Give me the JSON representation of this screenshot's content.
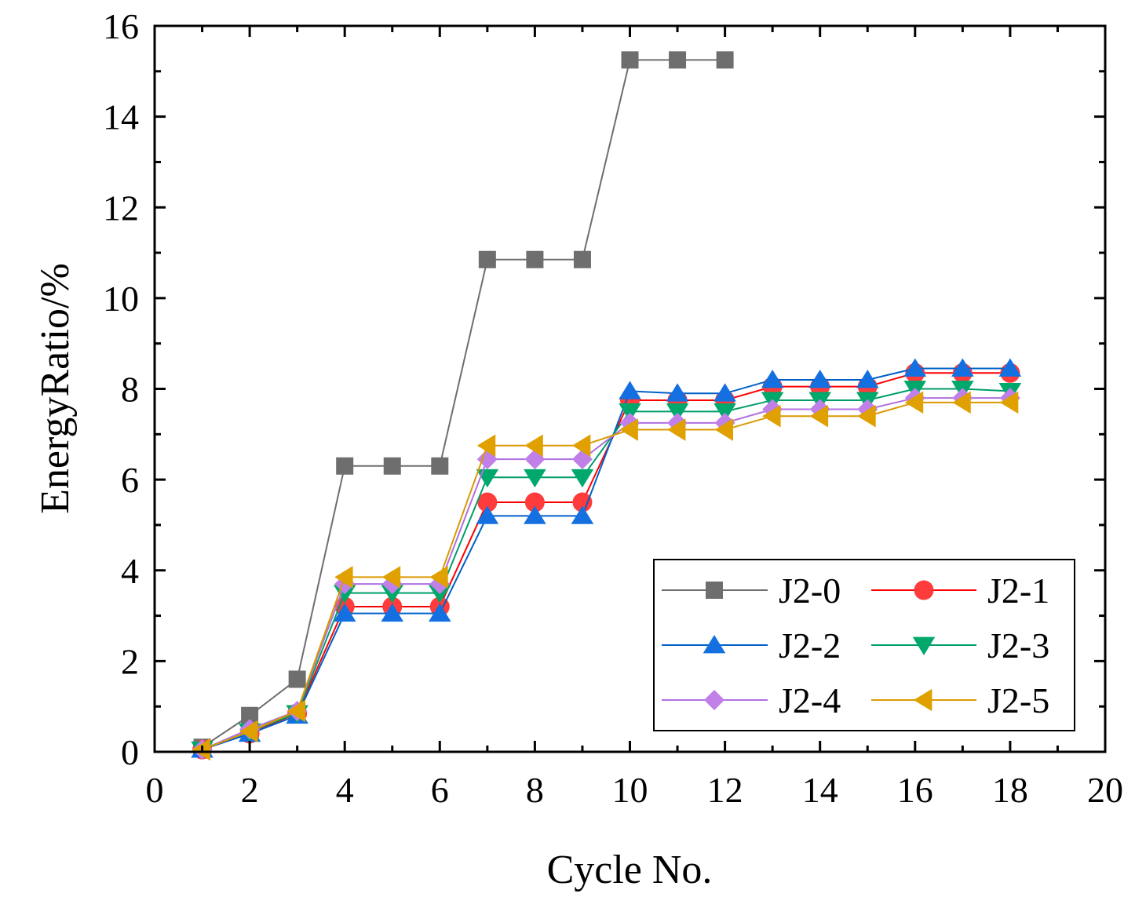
{
  "chart_data": {
    "type": "line",
    "title": "",
    "xlabel": "Cycle No.",
    "ylabel": "EnergyRatio/%",
    "xlim": [
      0,
      20
    ],
    "ylim": [
      0,
      16
    ],
    "x_ticks": [
      "0",
      "2",
      "4",
      "6",
      "8",
      "10",
      "12",
      "14",
      "16",
      "18",
      "20"
    ],
    "y_ticks": [
      "0",
      "2",
      "4",
      "6",
      "8",
      "10",
      "12",
      "14",
      "16"
    ],
    "grid": false,
    "legend_position": "bottom-right",
    "series": [
      {
        "name": "J2-0",
        "color": "#6e6e6e",
        "marker": "square",
        "x": [
          1,
          2,
          3,
          4,
          5,
          6,
          7,
          8,
          9,
          10,
          11,
          12
        ],
        "y": [
          0.1,
          0.8,
          1.6,
          6.3,
          6.3,
          6.3,
          10.85,
          10.85,
          10.85,
          15.25,
          15.25,
          15.25
        ]
      },
      {
        "name": "J2-1",
        "color": "#ff0000",
        "fill": "#ff3b3b",
        "marker": "circle",
        "x": [
          1,
          2,
          3,
          4,
          5,
          6,
          7,
          8,
          9,
          10,
          11,
          12,
          13,
          14,
          15,
          16,
          17,
          18
        ],
        "y": [
          0.05,
          0.4,
          0.85,
          3.2,
          3.2,
          3.2,
          5.5,
          5.5,
          5.5,
          7.75,
          7.75,
          7.75,
          8.05,
          8.05,
          8.05,
          8.35,
          8.35,
          8.35
        ]
      },
      {
        "name": "J2-2",
        "color": "#0060c8",
        "fill": "#1470e0",
        "marker": "triangle-up",
        "x": [
          1,
          2,
          3,
          4,
          5,
          6,
          7,
          8,
          9,
          10,
          11,
          12,
          13,
          14,
          15,
          16,
          17,
          18
        ],
        "y": [
          0.05,
          0.4,
          0.8,
          3.05,
          3.05,
          3.05,
          5.2,
          5.2,
          5.2,
          7.95,
          7.9,
          7.9,
          8.2,
          8.2,
          8.2,
          8.45,
          8.45,
          8.45
        ]
      },
      {
        "name": "J2-3",
        "color": "#009e6a",
        "fill": "#00a86b",
        "marker": "triangle-down",
        "x": [
          1,
          2,
          3,
          4,
          5,
          6,
          7,
          8,
          9,
          10,
          11,
          12,
          13,
          14,
          15,
          16,
          17,
          18
        ],
        "y": [
          0.05,
          0.45,
          0.85,
          3.5,
          3.5,
          3.5,
          6.05,
          6.05,
          6.05,
          7.5,
          7.5,
          7.5,
          7.75,
          7.75,
          7.75,
          8.0,
          8.0,
          7.95
        ]
      },
      {
        "name": "J2-4",
        "color": "#b070e0",
        "fill": "#c080e8",
        "marker": "diamond",
        "x": [
          1,
          2,
          3,
          4,
          5,
          6,
          7,
          8,
          9,
          10,
          11,
          12,
          13,
          14,
          15,
          16,
          17,
          18
        ],
        "y": [
          0.05,
          0.5,
          0.9,
          3.7,
          3.7,
          3.7,
          6.45,
          6.45,
          6.45,
          7.25,
          7.25,
          7.25,
          7.55,
          7.55,
          7.55,
          7.8,
          7.8,
          7.8
        ]
      },
      {
        "name": "J2-5",
        "color": "#d99a00",
        "fill": "#e0a000",
        "marker": "triangle-left",
        "x": [
          1,
          2,
          3,
          4,
          5,
          6,
          7,
          8,
          9,
          10,
          11,
          12,
          13,
          14,
          15,
          16,
          17,
          18
        ],
        "y": [
          0.05,
          0.45,
          0.9,
          3.85,
          3.85,
          3.85,
          6.75,
          6.75,
          6.75,
          7.1,
          7.1,
          7.1,
          7.4,
          7.4,
          7.4,
          7.7,
          7.7,
          7.7
        ]
      }
    ]
  }
}
